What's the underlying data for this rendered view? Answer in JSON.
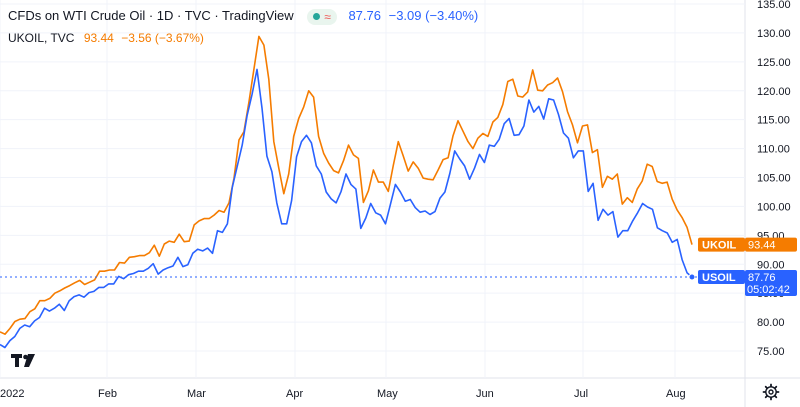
{
  "header": {
    "title": "CFDs on WTI Crude Oil · 1D · TVC · TradingView",
    "primary_value": "87.76",
    "primary_change": "−3.09 (−3.40%)",
    "secondary_symbol": "UKOIL, TVC",
    "secondary_value": "93.44",
    "secondary_change": "−3.56 (−3.67%)"
  },
  "colors": {
    "usoil": "#2962ff",
    "ukoil": "#f57c00",
    "grid": "#f0f3fa",
    "text": "#131722"
  },
  "icons": {
    "logo": "tradingview-logo-icon",
    "settings": "gear-icon",
    "status": "market-status-icon"
  },
  "chart_data": {
    "type": "line",
    "y_range": [
      72,
      137
    ],
    "y_ticks": [
      "135.00",
      "130.00",
      "125.00",
      "120.00",
      "115.00",
      "110.00",
      "105.00",
      "100.00",
      "95.00",
      "90.00",
      "85.00",
      "80.00",
      "75.00"
    ],
    "x_ticks": [
      "2022",
      "Feb",
      "Mar",
      "Apr",
      "May",
      "Jun",
      "Jul",
      "Aug"
    ],
    "series": [
      {
        "name": "UKOIL",
        "values": [
          78.3,
          77.9,
          78.9,
          80.1,
          80.5,
          80.6,
          81.8,
          82.3,
          83.7,
          83.7,
          84.1,
          85.0,
          85.4,
          85.9,
          86.3,
          86.8,
          87.2,
          86.5,
          86.9,
          87.3,
          88.8,
          88.8,
          89.0,
          89.0,
          90.3,
          90.2,
          91.2,
          91.3,
          91.5,
          91.5,
          92.0,
          93.3,
          91.4,
          93.5,
          94.0,
          93.8,
          95.2,
          93.9,
          94.0,
          96.8,
          97.5,
          97.9,
          97.9,
          98.5,
          99.3,
          99.0,
          100.6,
          104.9,
          111.5,
          112.9,
          118.0,
          123.7,
          129.4,
          127.9,
          122.0,
          111.2,
          106.6,
          102.2,
          105.6,
          112.1,
          115.2,
          117.2,
          120.0,
          118.9,
          112.1,
          109.2,
          107.5,
          106.2,
          105.8,
          107.9,
          110.6,
          108.9,
          108.3,
          100.7,
          102.7,
          106.3,
          104.2,
          104.2,
          102.6,
          107.1,
          111.2,
          108.7,
          106.1,
          107.7,
          106.6,
          104.9,
          104.7,
          104.6,
          106.3,
          108.1,
          108.4,
          112.2,
          114.8,
          113.0,
          111.2,
          110.0,
          111.8,
          112.6,
          112.1,
          114.6,
          115.4,
          117.6,
          121.6,
          122.0,
          119.1,
          118.9,
          119.8,
          123.6,
          120.1,
          120.0,
          121.0,
          121.4,
          122.2,
          119.8,
          116.4,
          114.1,
          111.0,
          113.9,
          114.1,
          109.3,
          109.8,
          103.3,
          105.2,
          104.7,
          105.6,
          100.4,
          101.5,
          100.7,
          103.0,
          104.4,
          107.3,
          106.9,
          104.3,
          104.0,
          104.2,
          101.3,
          99.4,
          98.1,
          96.4,
          93.4
        ],
        "final": "93.44"
      },
      {
        "name": "USOIL",
        "values": [
          76.1,
          75.6,
          76.8,
          77.5,
          78.9,
          79.5,
          79.2,
          80.2,
          80.8,
          82.4,
          81.9,
          82.4,
          83.1,
          82.0,
          83.7,
          84.4,
          84.7,
          84.3,
          85.1,
          85.3,
          86.0,
          86.0,
          86.6,
          86.6,
          87.9,
          87.5,
          88.2,
          88.4,
          88.8,
          88.8,
          89.3,
          90.1,
          88.3,
          89.0,
          89.4,
          89.7,
          91.2,
          89.6,
          89.9,
          91.9,
          92.6,
          92.3,
          92.8,
          91.9,
          95.8,
          95.5,
          97.0,
          103.3,
          107.0,
          110.6,
          115.7,
          119.4,
          123.7,
          117.0,
          108.7,
          106.0,
          100.6,
          97.0,
          97.0,
          101.0,
          108.6,
          111.2,
          112.3,
          111.0,
          107.0,
          105.6,
          102.5,
          101.3,
          100.6,
          102.6,
          105.6,
          103.8,
          103.0,
          96.2,
          98.0,
          100.5,
          98.9,
          98.5,
          97.0,
          100.4,
          103.8,
          102.5,
          100.9,
          101.2,
          99.8,
          99.0,
          99.2,
          98.6,
          99.1,
          101.4,
          102.5,
          105.7,
          109.6,
          108.2,
          107.0,
          104.7,
          106.6,
          109.0,
          107.6,
          110.6,
          110.4,
          111.6,
          114.3,
          115.2,
          112.3,
          112.4,
          113.9,
          118.4,
          116.3,
          117.3,
          115.1,
          118.6,
          118.4,
          115.9,
          112.7,
          111.8,
          108.4,
          109.6,
          109.6,
          102.6,
          104.0,
          97.6,
          99.5,
          98.5,
          99.1,
          94.7,
          95.8,
          95.8,
          97.5,
          98.9,
          100.5,
          99.9,
          99.5,
          96.3,
          95.8,
          95.4,
          93.8,
          94.3,
          90.8,
          88.5,
          87.8
        ],
        "final": "87.76"
      }
    ],
    "badges": [
      {
        "symbol": "UKOIL",
        "value": "93.44"
      },
      {
        "symbol": "USOIL",
        "value": "87.76",
        "countdown": "05:02:42"
      }
    ]
  }
}
